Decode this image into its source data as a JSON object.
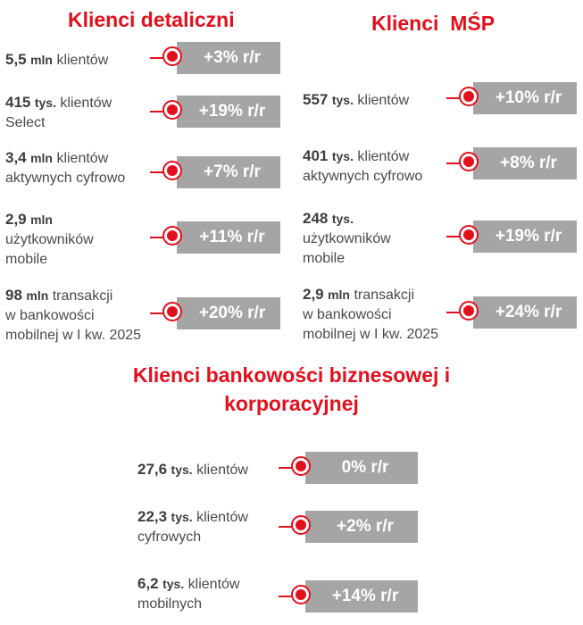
{
  "retail": {
    "title": "Klienci detaliczni",
    "items": [
      {
        "num": "5,5",
        "unit": "mln",
        "text1": "klientów",
        "text2": "",
        "text3": "",
        "change": "+3% r/r"
      },
      {
        "num": "415",
        "unit": "tys.",
        "text1": "klientów",
        "text2": "Select",
        "text3": "",
        "change": "+19% r/r"
      },
      {
        "num": "3,4",
        "unit": "mln",
        "text1": "klientów",
        "text2": "aktywnych cyfrowo",
        "text3": "",
        "change": "+7% r/r"
      },
      {
        "num": "2,9",
        "unit": "mln",
        "text1": "",
        "text2": "użytkowników",
        "text3": "mobile",
        "change": "+11% r/r"
      },
      {
        "num": "98",
        "unit": "mln",
        "text1": "transakcji",
        "text2": "w bankowości",
        "text3": "mobilnej w I kw. 2025",
        "change": "+20% r/r"
      }
    ]
  },
  "sme": {
    "title": "Klienci  MŚP",
    "items": [
      {
        "num": "557",
        "unit": "tys.",
        "text1": "klientów",
        "text2": "",
        "text3": "",
        "change": "+10% r/r"
      },
      {
        "num": "401",
        "unit": "tys.",
        "text1": "klientów",
        "text2": "aktywnych cyfrowo",
        "text3": "",
        "change": "+8% r/r"
      },
      {
        "num": "248",
        "unit": "tys.",
        "text1": "",
        "text2": "użytkowników",
        "text3": "mobile",
        "change": "+19% r/r"
      },
      {
        "num": "2,9",
        "unit": "mln",
        "text1": "transakcji",
        "text2": "w bankowości",
        "text3": "mobilnej w I kw. 2025",
        "change": "+24% r/r"
      }
    ]
  },
  "corporate": {
    "title_line1": "Klienci bankowości biznesowej i",
    "title_line2": "korporacyjnej",
    "items": [
      {
        "num": "27,6",
        "unit": "tys.",
        "text1": "klientów",
        "text2": "",
        "change": "0% r/r"
      },
      {
        "num": "22,3",
        "unit": "tys.",
        "text1": "klientów",
        "text2": "cyfrowych",
        "change": "+2% r/r"
      },
      {
        "num": "6,2",
        "unit": "tys.",
        "text1": "klientów",
        "text2": "mobilnych",
        "change": "+14% r/r"
      }
    ]
  },
  "colors": {
    "accent": "#e2101c",
    "badge_bg": "#a5a5a5",
    "text": "#4a4a4a"
  }
}
